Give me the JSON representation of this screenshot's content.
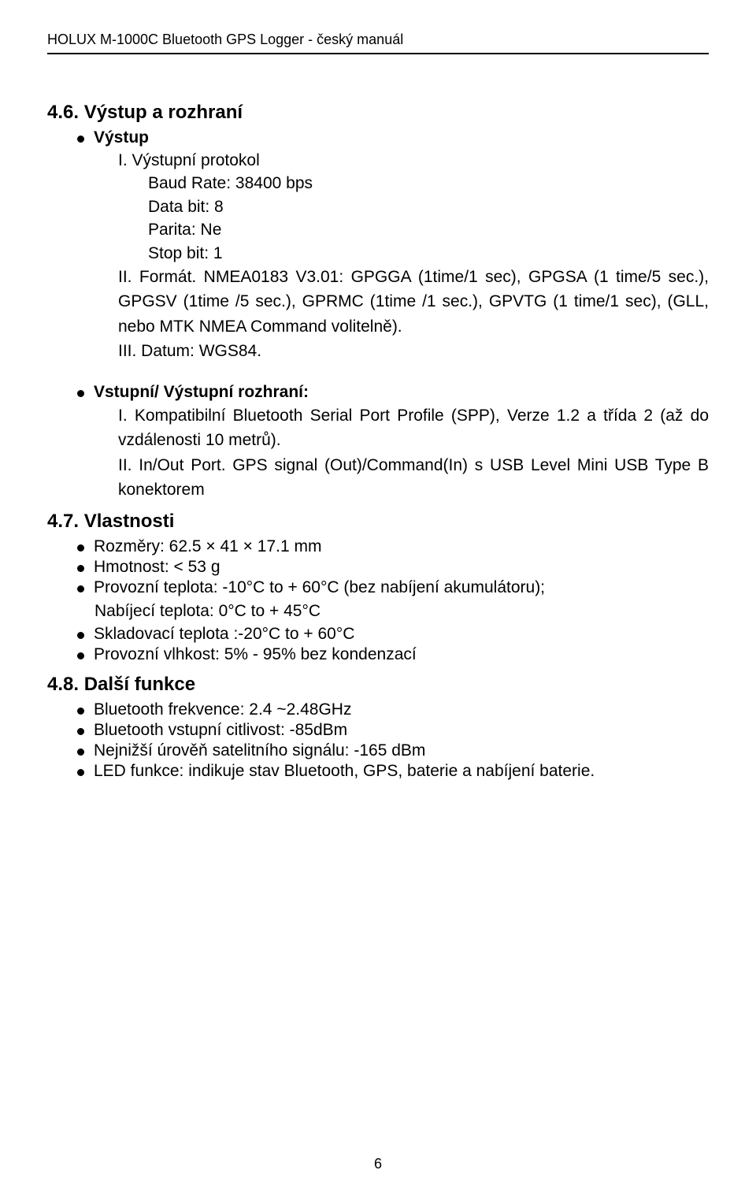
{
  "header": {
    "title": "HOLUX M-1000C Bluetooth GPS Logger - český manuál"
  },
  "section46": {
    "heading": "4.6. Výstup a rozhraní",
    "bullet1": "Výstup",
    "item_i": "I. Výstupní protokol",
    "spec_baud": "Baud Rate: 38400 bps",
    "spec_data": "Data bit: 8",
    "spec_parity": "Parita: Ne",
    "spec_stop": "Stop bit: 1",
    "item_ii": "II. Formát. NMEA0183 V3.01: GPGGA (1time/1 sec), GPGSA (1 time/5 sec.), GPGSV (1time /5 sec.), GPRMC (1time /1 sec.), GPVTG (1 time/1 sec), (GLL, nebo MTK NMEA Command volitelně).",
    "item_iii": "III. Datum: WGS84.",
    "bullet2": "Vstupní/ Výstupní rozhraní:",
    "io_i": "I. Kompatibilní Bluetooth Serial Port Profile (SPP), Verze 1.2 a třída 2 (až do vzdálenosti 10 metrů).",
    "io_ii": "II. In/Out Port. GPS signal (Out)/Command(In) s USB Level Mini USB Type B konektorem"
  },
  "section47": {
    "heading": "4.7. Vlastnosti",
    "b1": "Rozměry: 62.5 × 41 × 17.1 mm",
    "b2": "Hmotnost: < 53 g",
    "b3": "Provozní teplota: -10°C to + 60°C (bez nabíjení akumulátoru);",
    "b3_cont": "Nabíjecí teplota: 0°C to + 45°C",
    "b4": "Skladovací teplota :-20°C to + 60°C",
    "b5": "Provozní vlhkost: 5% - 95% bez kondenzací"
  },
  "section48": {
    "heading": "4.8. Další funkce",
    "b1": "Bluetooth frekvence: 2.4 ~2.48GHz",
    "b2": "Bluetooth vstupní citlivost: -85dBm",
    "b3": "Nejnižší úrověň satelitního signálu: -165 dBm",
    "b4": "LED funkce: indikuje stav Bluetooth, GPS, baterie a nabíjení baterie."
  },
  "page_number": "6"
}
